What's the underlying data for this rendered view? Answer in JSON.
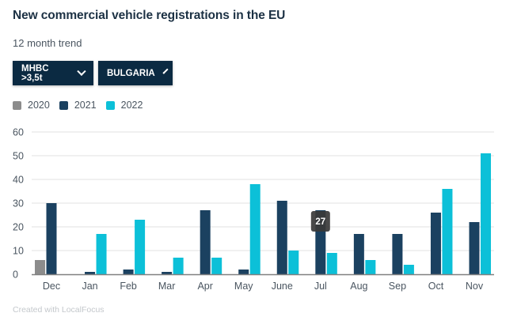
{
  "title": "New commercial vehicle registrations in the EU",
  "subtitle": "12 month trend",
  "filters": [
    {
      "label": "MHBC >3,5t"
    },
    {
      "label": "BULGARIA"
    }
  ],
  "credit": "Created with LocalFocus",
  "tooltip": {
    "label": "27",
    "category": "Jul",
    "series": "2021"
  },
  "chart_data": {
    "type": "bar",
    "title": "New commercial vehicle registrations in the EU",
    "subtitle": "12 month trend",
    "categories": [
      "Dec",
      "Jan",
      "Feb",
      "Mar",
      "Apr",
      "May",
      "June",
      "Jul",
      "Aug",
      "Sep",
      "Oct",
      "Nov"
    ],
    "series": [
      {
        "name": "2020",
        "color": "#8c8c8c",
        "values": [
          6,
          0,
          0,
          0,
          0,
          0,
          0,
          0,
          0,
          0,
          0,
          0
        ]
      },
      {
        "name": "2021",
        "color": "#1b4160",
        "values": [
          30,
          1,
          2,
          1,
          27,
          2,
          31,
          27,
          17,
          17,
          26,
          22
        ]
      },
      {
        "name": "2022",
        "color": "#0cc0d8",
        "values": [
          0,
          17,
          23,
          7,
          7,
          38,
          10,
          9,
          6,
          4,
          36,
          51
        ]
      }
    ],
    "ylim": [
      0,
      60
    ],
    "yticks": [
      0,
      10,
      20,
      30,
      40,
      50,
      60
    ],
    "grid": true,
    "legend": "top-left"
  }
}
